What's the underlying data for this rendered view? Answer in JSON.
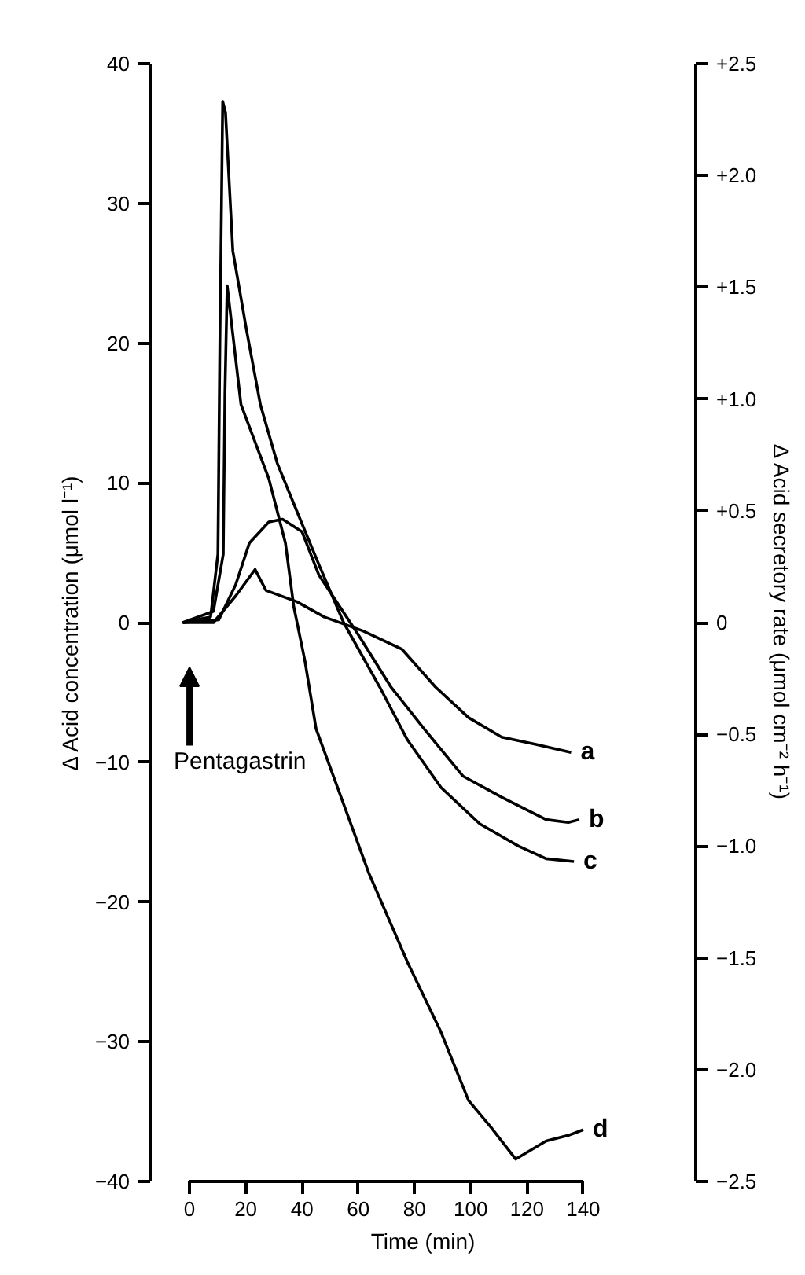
{
  "chart_data": {
    "type": "line",
    "xlabel": "Time (min)",
    "ylabel": "∆ Acid concentration (μmol l⁻¹)",
    "y2label": "∆ Acid secretory rate (μmol cm⁻² h⁻¹)",
    "xlim": [
      -14,
      180
    ],
    "xticks": [
      0,
      20,
      40,
      60,
      80,
      100,
      120,
      140
    ],
    "ylim": [
      -40,
      40
    ],
    "yticks": [
      {
        "value": -40,
        "label": "−40"
      },
      {
        "value": -30,
        "label": "−30"
      },
      {
        "value": -20,
        "label": "−20"
      },
      {
        "value": -10,
        "label": "−10"
      },
      0,
      10,
      20,
      30,
      40
    ],
    "y2lim": [
      -2.5,
      2.5
    ],
    "y2ticks": [
      {
        "value": -2.5,
        "label": "−2.5"
      },
      {
        "value": -2.0,
        "label": "−2.0"
      },
      {
        "value": -1.5,
        "label": "−1.5"
      },
      {
        "value": -1.0,
        "label": "−1.0"
      },
      {
        "value": -0.5,
        "label": "−0.5"
      },
      {
        "value": 0,
        "label": "0"
      },
      {
        "value": 0.5,
        "label": "+0.5"
      },
      {
        "value": 1.0,
        "label": "+1.0"
      },
      {
        "value": 1.5,
        "label": "+1.5"
      },
      {
        "value": 2.0,
        "label": "+2.0"
      },
      {
        "value": 2.5,
        "label": "+2.5"
      }
    ],
    "grid": false,
    "legend": false,
    "line_style": "solid",
    "annotations": [
      "Pentagastrin"
    ],
    "series": [
      {
        "name": "a",
        "color": "#000000",
        "x": [
          -2.4,
          8.5,
          16.4,
          23.3,
          27.2,
          38.1,
          47.9,
          61.7,
          75.5,
          87.4,
          99.2,
          111,
          122.9,
          135.7
        ],
        "values": [
          0,
          0,
          1.9,
          3.8,
          2.3,
          1.5,
          0.4,
          -0.6,
          -1.9,
          -4.6,
          -6.8,
          -8.2,
          -8.7,
          -9.3
        ]
      },
      {
        "name": "b",
        "color": "#000000",
        "x": [
          -2.4,
          10.4,
          16.4,
          21.3,
          28.2,
          33.1,
          40.0,
          46.0,
          59.8,
          71.6,
          83.4,
          97.3,
          111,
          126.8,
          134.7,
          138.6
        ],
        "values": [
          0,
          0.2,
          2.7,
          5.7,
          7.2,
          7.4,
          6.5,
          3.4,
          -0.8,
          -4.6,
          -7.6,
          -11.0,
          -12.5,
          -14.1,
          -14.3,
          -14.1
        ]
      },
      {
        "name": "c",
        "color": "#000000",
        "x": [
          -2.4,
          7.5,
          10.1,
          10.8,
          11.8,
          12.8,
          15.4,
          20.3,
          25.2,
          31.2,
          38.1,
          45.9,
          54.8,
          67.6,
          77.5,
          89.4,
          103.2,
          117,
          126.8,
          136.7
        ],
        "values": [
          0,
          0.4,
          4.9,
          20.2,
          37.3,
          36.5,
          26.6,
          20.9,
          15.6,
          11.4,
          8.0,
          4.2,
          0,
          -4.6,
          -8.4,
          -11.8,
          -14.4,
          -16.0,
          -16.9,
          -17.1
        ]
      },
      {
        "name": "d",
        "color": "#000000",
        "x": [
          -2.4,
          8.5,
          12.0,
          12.6,
          13.4,
          18.3,
          28.2,
          34.1,
          37.1,
          41.0,
          45.0,
          51.9,
          63.7,
          77.5,
          89.4,
          99.2,
          107.1,
          116,
          126.8,
          134.7,
          140
        ],
        "values": [
          0,
          0.8,
          4.9,
          16.4,
          24.1,
          15.6,
          10.3,
          5.7,
          1.1,
          -2.7,
          -7.6,
          -11.4,
          -17.9,
          -24.3,
          -29.3,
          -34.2,
          -36.1,
          -38.4,
          -37.1,
          -36.7,
          -36.3
        ]
      }
    ]
  }
}
